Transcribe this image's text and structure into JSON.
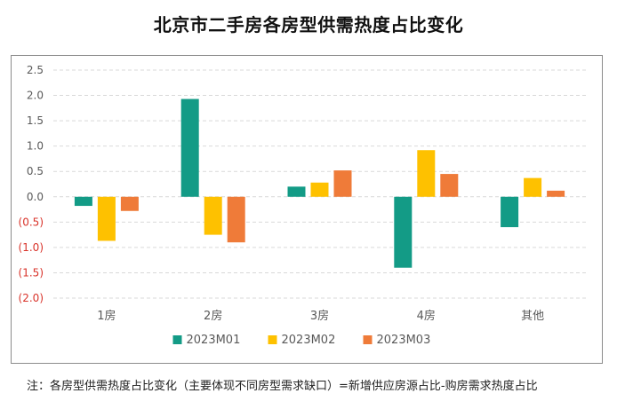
{
  "title": "北京市二手房各房型供需热度占比变化",
  "footnote": "注：各房型供需热度占比变化（主要体现不同房型需求缺口）=新增供应房源占比-购房需求热度占比",
  "chart_data": {
    "type": "bar",
    "categories": [
      "1房",
      "2房",
      "3房",
      "4房",
      "其他"
    ],
    "series": [
      {
        "name": "2023M01",
        "color": "#139b86",
        "values": [
          -0.18,
          1.93,
          0.2,
          -1.4,
          -0.6
        ]
      },
      {
        "name": "2023M02",
        "color": "#fec100",
        "values": [
          -0.87,
          -0.75,
          0.28,
          0.92,
          0.37
        ]
      },
      {
        "name": "2023M03",
        "color": "#ef7b39",
        "values": [
          -0.28,
          -0.9,
          0.52,
          0.45,
          0.12
        ]
      }
    ],
    "y_ticks": [
      "2.5",
      "2.0",
      "1.5",
      "1.0",
      "0.5",
      "0.0",
      "(0.5)",
      "(1.0)",
      "(1.5)",
      "(2.0)"
    ],
    "ylim": [
      -2.0,
      2.5
    ],
    "negative_tick_color": "#d9342b",
    "grid": true,
    "gridline_style": "dashed",
    "legend_position": "bottom"
  }
}
